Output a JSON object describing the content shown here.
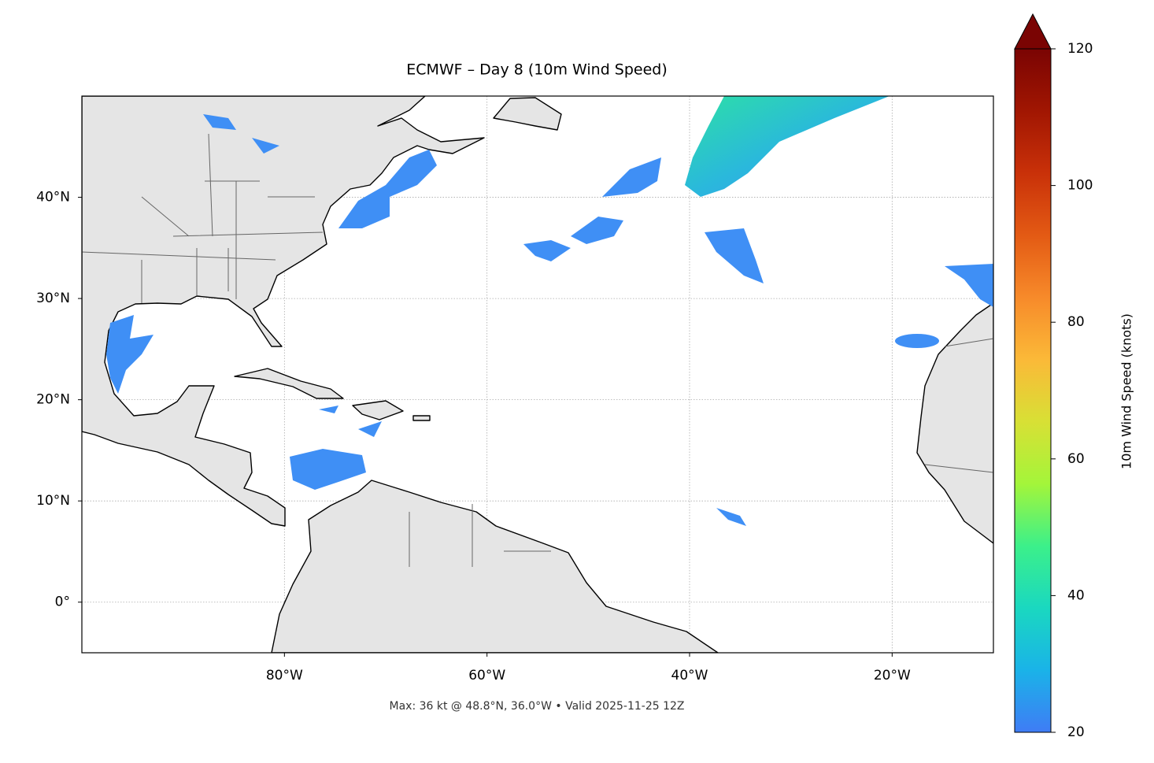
{
  "map": {
    "type": "map",
    "title": "ECMWF – Day 8 (10m Wind Speed)",
    "footer": "Max: 36 kt @ 48.8°N, 36.0°W • Valid 2025-11-25 12Z",
    "xlim": [
      -100,
      -10
    ],
    "ylim": [
      -5,
      50
    ],
    "xticks": [
      {
        "value": -80,
        "label": "80°W"
      },
      {
        "value": -60,
        "label": "60°W"
      },
      {
        "value": -40,
        "label": "40°W"
      },
      {
        "value": -20,
        "label": "20°W"
      }
    ],
    "yticks": [
      {
        "value": 0,
        "label": "0°"
      },
      {
        "value": 10,
        "label": "10°N"
      },
      {
        "value": 20,
        "label": "20°N"
      },
      {
        "value": 30,
        "label": "30°N"
      },
      {
        "value": 40,
        "label": "40°N"
      }
    ],
    "grid": true,
    "colorbar": {
      "label": "10m Wind Speed (knots)",
      "lim": [
        20,
        120
      ],
      "ticks": [
        20,
        40,
        60,
        80,
        100,
        120
      ],
      "colors": [
        "#3f7cf5",
        "#1ab3e8",
        "#1ad8c0",
        "#3cf08a",
        "#a4f53a",
        "#d8e035",
        "#fbb938",
        "#f78a2a",
        "#e35a14",
        "#c93109",
        "#a11602",
        "#7a0403"
      ]
    }
  }
}
